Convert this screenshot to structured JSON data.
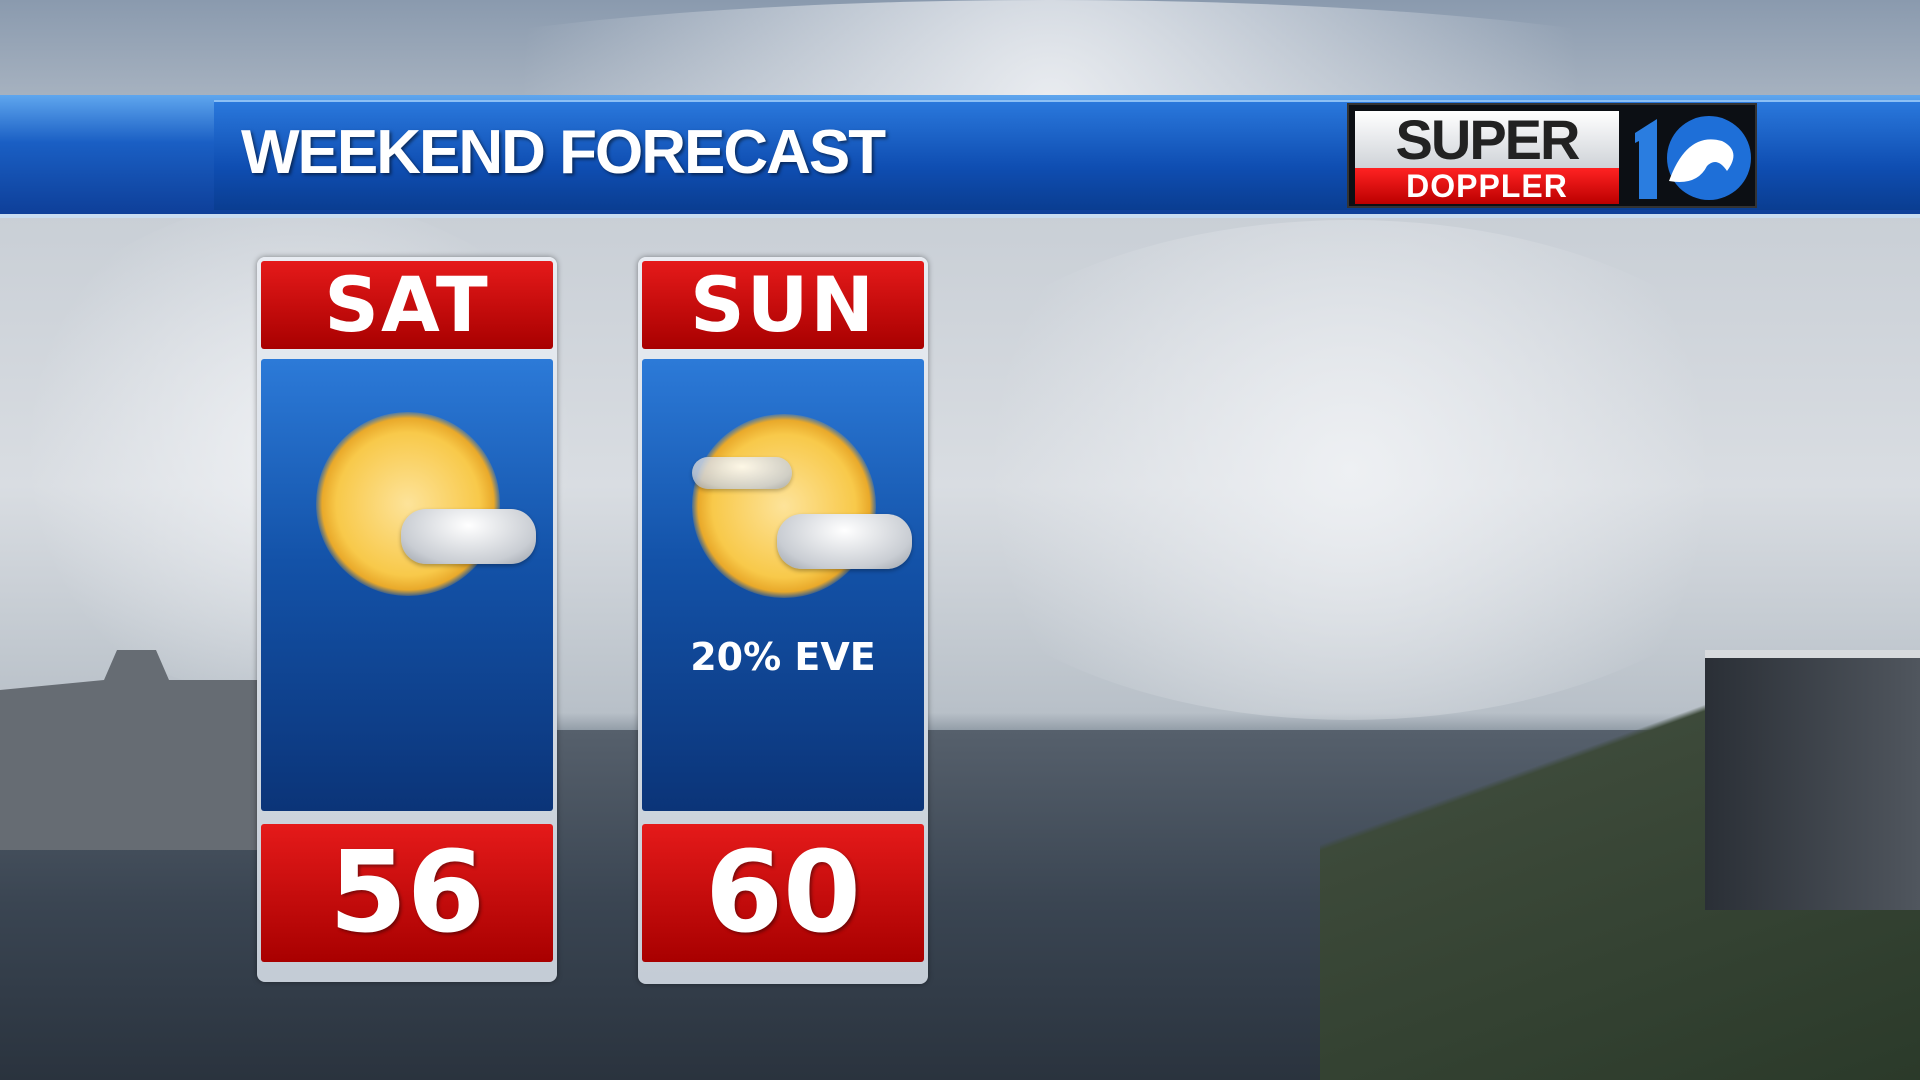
{
  "header": {
    "title": "WEEKEND FORECAST"
  },
  "logo": {
    "line1": "SUPER",
    "line2": "DOPPLER",
    "number": "10"
  },
  "forecast": [
    {
      "day": "SAT",
      "icon": "partly-cloudy-icon",
      "high": "56",
      "note": ""
    },
    {
      "day": "SUN",
      "icon": "partly-cloudy-icon",
      "high": "60",
      "note": "20% EVE"
    }
  ],
  "colors": {
    "banner": "#0f4eb2",
    "day_header": "#d01010",
    "panel": "#1352a8"
  }
}
